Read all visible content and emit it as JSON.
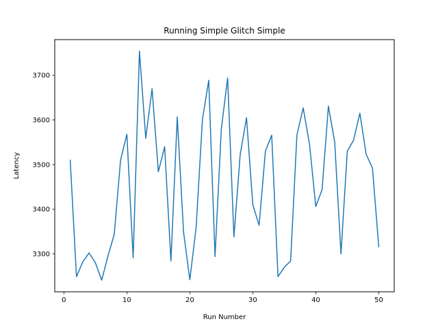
{
  "chart_data": {
    "type": "line",
    "title": "Running Simple Glitch Simple",
    "xlabel": "Run Number",
    "ylabel": "Latency",
    "xlim": [
      -1.45,
      52.45
    ],
    "ylim": [
      3215,
      3780
    ],
    "grid": false,
    "legend": "none",
    "x_ticks": [
      0,
      10,
      20,
      30,
      40,
      50
    ],
    "y_ticks": [
      3300,
      3400,
      3500,
      3600,
      3700
    ],
    "series": [
      {
        "color": "#1f77b4",
        "x": [
          1,
          2,
          3,
          4,
          5,
          6,
          7,
          8,
          9,
          10,
          11,
          12,
          13,
          14,
          15,
          16,
          17,
          18,
          19,
          20,
          21,
          22,
          23,
          24,
          25,
          26,
          27,
          28,
          29,
          30,
          31,
          32,
          33,
          34,
          35,
          36,
          37,
          38,
          39,
          40,
          41,
          42,
          43,
          44,
          45,
          46,
          47,
          48,
          49,
          50
        ],
        "y": [
          3511,
          3249,
          3282,
          3302,
          3280,
          3241,
          3295,
          3344,
          3510,
          3568,
          3291,
          3754,
          3559,
          3670,
          3484,
          3540,
          3284,
          3607,
          3349,
          3242,
          3359,
          3601,
          3689,
          3294,
          3580,
          3694,
          3338,
          3523,
          3605,
          3410,
          3364,
          3530,
          3566,
          3249,
          3270,
          3284,
          3566,
          3627,
          3546,
          3406,
          3444,
          3631,
          3551,
          3300,
          3530,
          3555,
          3615,
          3523,
          3492,
          3315
        ]
      }
    ]
  }
}
